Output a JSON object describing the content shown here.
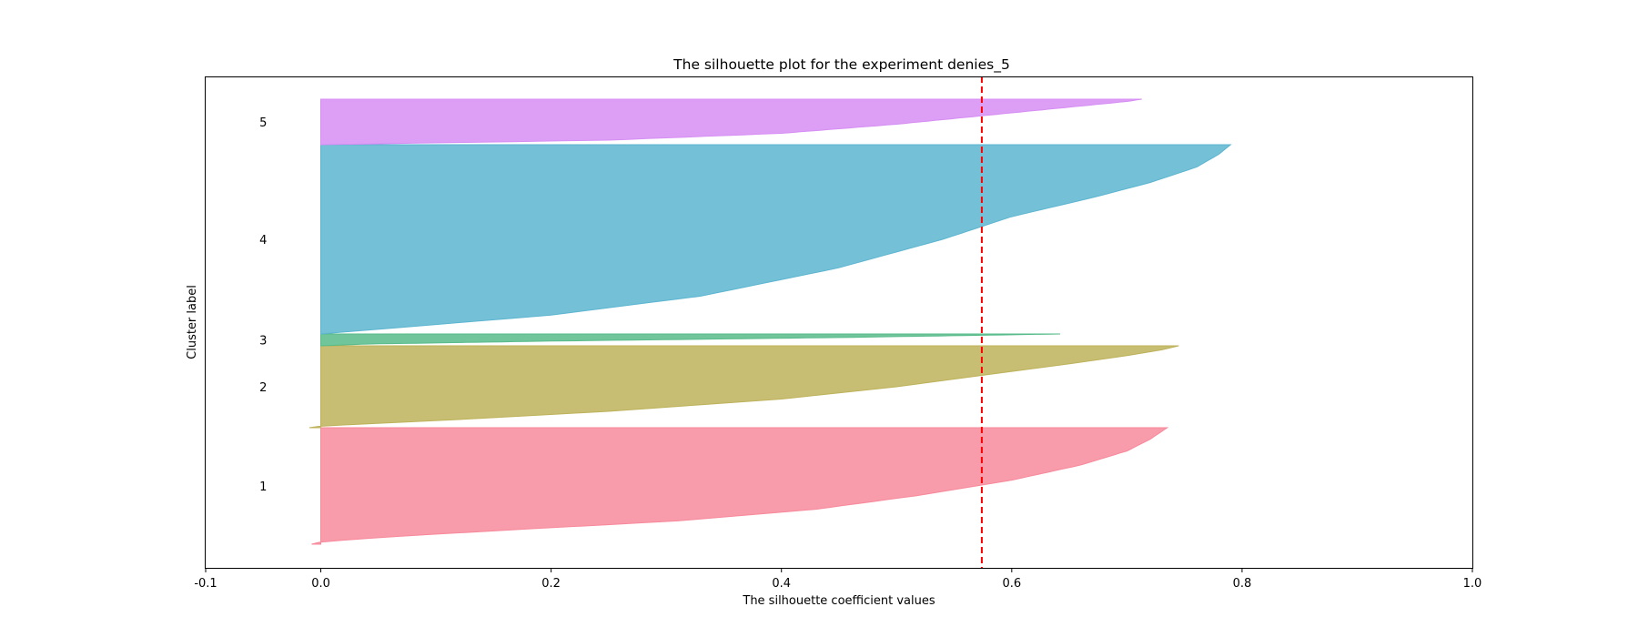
{
  "chart_data": {
    "type": "area",
    "title": "The silhouette plot for the experiment denies_5",
    "xlabel": "The silhouette coefficient values",
    "ylabel": "Cluster label",
    "xlim": [
      -0.1,
      1.0
    ],
    "xticks": [
      "-0.1",
      "0.0",
      "0.2",
      "0.4",
      "0.6",
      "0.8",
      "1.0"
    ],
    "xtick_values": [
      -0.1,
      0.0,
      0.2,
      0.4,
      0.6,
      0.8,
      1.0
    ],
    "grid": false,
    "average_silhouette": 0.574,
    "clusters": [
      {
        "name": "1",
        "color": "#f7899b",
        "min": -0.008,
        "max": 0.735,
        "profile": [
          [
            0,
            -0.008
          ],
          [
            0.02,
            0.0
          ],
          [
            0.06,
            0.055
          ],
          [
            0.12,
            0.16
          ],
          [
            0.2,
            0.31
          ],
          [
            0.3,
            0.43
          ],
          [
            0.42,
            0.52
          ],
          [
            0.55,
            0.6
          ],
          [
            0.68,
            0.66
          ],
          [
            0.8,
            0.7
          ],
          [
            0.9,
            0.72
          ],
          [
            1,
            0.735
          ]
        ]
      },
      {
        "name": "2",
        "color": "#bdb25a",
        "min": -0.01,
        "max": 0.745,
        "profile": [
          [
            0,
            -0.01
          ],
          [
            0.02,
            0.0
          ],
          [
            0.1,
            0.12
          ],
          [
            0.2,
            0.25
          ],
          [
            0.35,
            0.4
          ],
          [
            0.5,
            0.5
          ],
          [
            0.65,
            0.58
          ],
          [
            0.78,
            0.65
          ],
          [
            0.88,
            0.7
          ],
          [
            0.95,
            0.73
          ],
          [
            1,
            0.745
          ]
        ]
      },
      {
        "name": "3",
        "color": "#57bb8a",
        "min": 0.0,
        "max": 0.642,
        "profile": [
          [
            0,
            0.0
          ],
          [
            0.15,
            0.04
          ],
          [
            0.4,
            0.2
          ],
          [
            0.7,
            0.45
          ],
          [
            0.9,
            0.58
          ],
          [
            1,
            0.642
          ]
        ]
      },
      {
        "name": "4",
        "color": "#5cb5d0",
        "min": 0.0,
        "max": 0.79,
        "profile": [
          [
            0,
            0.0
          ],
          [
            0.03,
            0.06
          ],
          [
            0.1,
            0.2
          ],
          [
            0.2,
            0.33
          ],
          [
            0.35,
            0.45
          ],
          [
            0.5,
            0.54
          ],
          [
            0.62,
            0.6
          ],
          [
            0.72,
            0.67
          ],
          [
            0.8,
            0.72
          ],
          [
            0.88,
            0.76
          ],
          [
            0.95,
            0.78
          ],
          [
            1,
            0.79
          ]
        ]
      },
      {
        "name": "5",
        "color": "#d68ef3",
        "min": 0.0,
        "max": 0.713,
        "profile": [
          [
            0,
            0.0
          ],
          [
            0.1,
            0.25
          ],
          [
            0.25,
            0.4
          ],
          [
            0.45,
            0.5
          ],
          [
            0.65,
            0.58
          ],
          [
            0.85,
            0.66
          ],
          [
            0.95,
            0.7
          ],
          [
            1,
            0.713
          ]
        ]
      }
    ],
    "avg_line_color": "#ff0000"
  }
}
